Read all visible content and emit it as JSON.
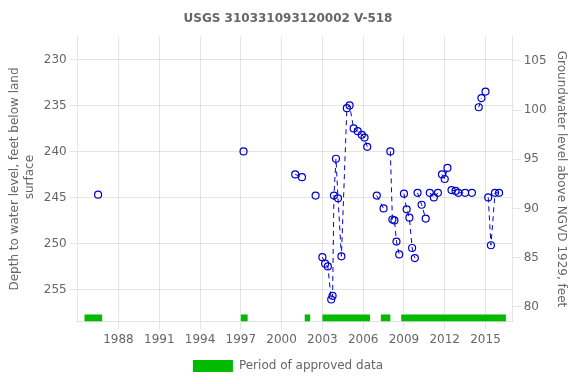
{
  "chart_data": {
    "type": "line",
    "title": "USGS 310331093120002 V-518",
    "ylabel": "Depth to water level, feet below land\n surface",
    "y2label": "Groundwater level above NGVD 1929, feet",
    "xlim": [
      1985.0,
      2017.0
    ],
    "xticks": [
      1988,
      1991,
      1994,
      1997,
      2000,
      2003,
      2006,
      2009,
      2012,
      2015
    ],
    "ylim": [
      258.5,
      227.5
    ],
    "yticks": [
      230,
      235,
      240,
      245,
      250,
      255
    ],
    "y2lim": [
      78.5,
      107.5
    ],
    "y2ticks": [
      80,
      85,
      90,
      95,
      100,
      105
    ],
    "grid": true,
    "legend": "bottom",
    "series": [
      {
        "color": "#0000cc",
        "line_style": "dashed",
        "marker": "open_circle",
        "x": [
          1986.5
        ],
        "values": [
          244.7
        ]
      },
      {
        "color": "#0000cc",
        "line_style": "dashed",
        "marker": "open_circle",
        "x": [
          1997.2
        ],
        "values": [
          240.0
        ]
      },
      {
        "color": "#0000cc",
        "line_style": "dashed",
        "marker": "open_circle",
        "x": [
          2001.0,
          2001.5
        ],
        "values": [
          242.5,
          242.8
        ]
      },
      {
        "color": "#0000cc",
        "line_style": "dashed",
        "marker": "open_circle",
        "x": [
          2002.5
        ],
        "values": [
          244.8
        ]
      },
      {
        "color": "#0000cc",
        "line_style": "dashed",
        "marker": "open_circle",
        "x": [
          2003.0,
          2003.2,
          2003.4,
          2003.65,
          2003.75,
          2003.85,
          2004.0,
          2004.15,
          2004.4,
          2004.8,
          2005.0,
          2005.3,
          2005.6,
          2005.9,
          2006.1,
          2006.3
        ],
        "values": [
          251.5,
          252.2,
          252.5,
          256.1,
          255.7,
          244.8,
          240.8,
          245.1,
          251.4,
          235.3,
          235.0,
          237.5,
          237.8,
          238.2,
          238.5,
          239.5
        ]
      },
      {
        "color": "#0000cc",
        "line_style": "dashed",
        "marker": "open_circle",
        "x": [
          2007.0,
          2007.5
        ],
        "values": [
          244.8,
          246.2
        ]
      },
      {
        "color": "#0000cc",
        "line_style": "dashed",
        "marker": "open_circle",
        "x": [
          2008.0,
          2008.15,
          2008.3,
          2008.45,
          2008.65
        ],
        "values": [
          240.0,
          247.4,
          247.5,
          249.8,
          251.2
        ]
      },
      {
        "color": "#0000cc",
        "line_style": "dashed",
        "marker": "open_circle",
        "x": [
          2009.0,
          2009.2,
          2009.4,
          2009.6,
          2009.8
        ],
        "values": [
          244.6,
          246.3,
          247.2,
          250.5,
          251.6
        ]
      },
      {
        "color": "#0000cc",
        "line_style": "dashed",
        "marker": "open_circle",
        "x": [
          2010.0,
          2010.3,
          2010.6
        ],
        "values": [
          244.5,
          245.8,
          247.3
        ]
      },
      {
        "color": "#0000cc",
        "line_style": "dashed",
        "marker": "open_circle",
        "x": [
          2010.9,
          2011.2,
          2011.5
        ],
        "values": [
          244.5,
          245.0,
          244.5
        ]
      },
      {
        "color": "#0000cc",
        "line_style": "dashed",
        "marker": "open_circle",
        "x": [
          2011.8,
          2012.0,
          2012.2
        ],
        "values": [
          242.5,
          243.0,
          241.8
        ]
      },
      {
        "color": "#0000cc",
        "line_style": "dashed",
        "marker": "open_circle",
        "x": [
          2012.5,
          2012.8
        ],
        "values": [
          244.2,
          244.3
        ]
      },
      {
        "color": "#0000cc",
        "line_style": "dashed",
        "marker": "open_circle",
        "x": [
          2013.0,
          2013.5
        ],
        "values": [
          244.5,
          244.5
        ]
      },
      {
        "color": "#0000cc",
        "line_style": "dashed",
        "marker": "open_circle",
        "x": [
          2014.0
        ],
        "values": [
          244.5
        ]
      },
      {
        "color": "#0000cc",
        "line_style": "dashed",
        "marker": "open_circle",
        "x": [
          2014.5,
          2014.7
        ],
        "values": [
          235.2,
          234.2
        ]
      },
      {
        "color": "#0000cc",
        "line_style": "dashed",
        "marker": "open_circle",
        "x": [
          2015.0
        ],
        "values": [
          233.5
        ]
      },
      {
        "color": "#0000cc",
        "line_style": "dashed",
        "marker": "open_circle",
        "x": [
          2015.2,
          2015.4,
          2015.7,
          2016.0
        ],
        "values": [
          245.0,
          250.2,
          244.5,
          244.5
        ]
      },
      {
        "name": "Period of approved data",
        "type": "span",
        "color": "#00bb00",
        "periods": [
          [
            1985.5,
            1986.8
          ],
          [
            1997.0,
            1997.5
          ],
          [
            2001.7,
            2002.1
          ],
          [
            2003.0,
            2006.5
          ],
          [
            2007.3,
            2008.0
          ],
          [
            2008.8,
            2016.5
          ]
        ]
      }
    ]
  }
}
